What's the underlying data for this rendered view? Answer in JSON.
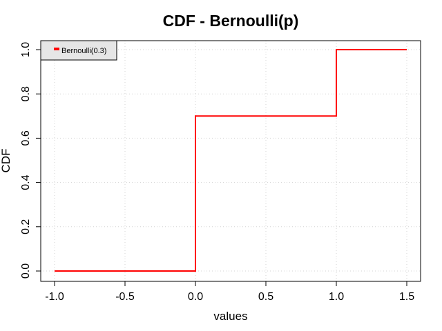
{
  "chart_data": {
    "type": "line",
    "title": "CDF - Bernoulli(p)",
    "xlabel": "values",
    "ylabel": "CDF",
    "xlim": [
      -1.0,
      1.5
    ],
    "ylim": [
      0.0,
      1.0
    ],
    "x_ticks": [
      "-1.0",
      "-0.5",
      "0.0",
      "0.5",
      "1.0",
      "1.5"
    ],
    "y_ticks": [
      "0.0",
      "0.2",
      "0.4",
      "0.6",
      "0.8",
      "1.0"
    ],
    "grid": true,
    "legend_position": "top-left",
    "series": [
      {
        "name": "Bernoulli(0.3)",
        "color": "#ff0000",
        "step": true,
        "x": [
          -1.0,
          0.0,
          0.0,
          1.0,
          1.0,
          1.5
        ],
        "y": [
          0.0,
          0.0,
          0.7,
          0.7,
          1.0,
          1.0
        ]
      }
    ]
  }
}
